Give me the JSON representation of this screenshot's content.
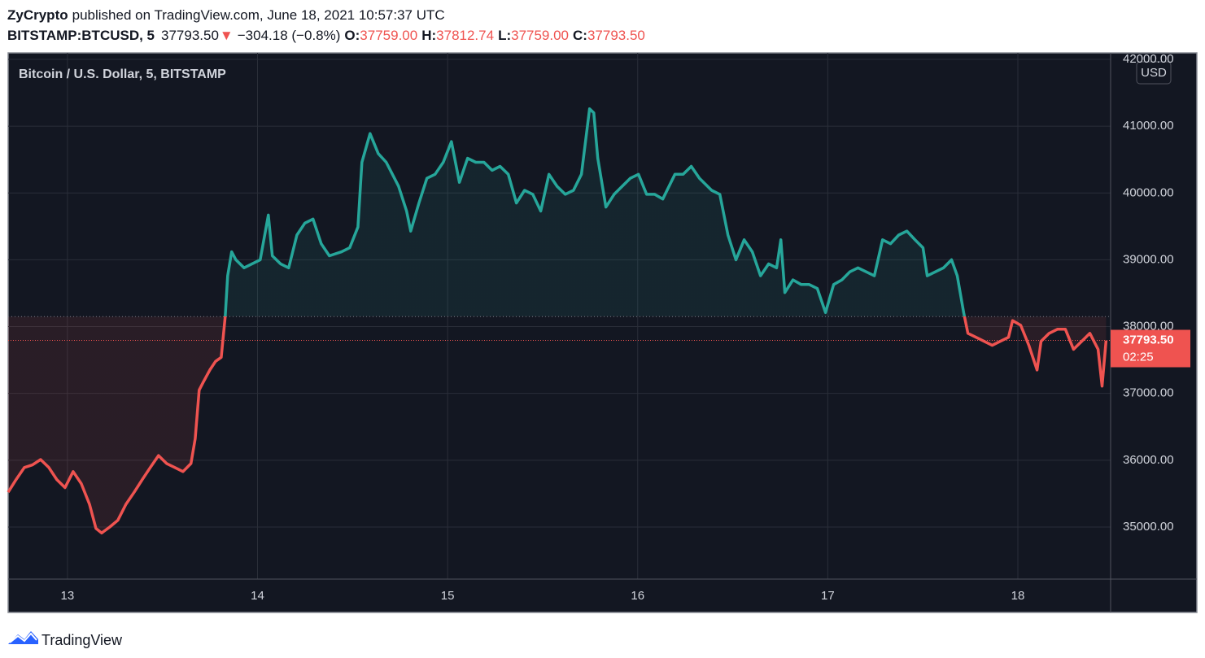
{
  "header": {
    "publisher": "ZyCrypto",
    "published": "published on TradingView.com, June 18, 2021 10:57:37 UTC",
    "symbol": "BITSTAMP:BTCUSD, 5",
    "last": "37793.50",
    "direction": "▼",
    "change": "−304.18 (−0.8%)",
    "ohlc": [
      {
        "label": "O:",
        "value": "37759.00"
      },
      {
        "label": "H:",
        "value": "37812.74"
      },
      {
        "label": "L:",
        "value": "37759.00"
      },
      {
        "label": "C:",
        "value": "37793.50"
      }
    ]
  },
  "chart_data": {
    "type": "line",
    "title": "Bitcoin / U.S. Dollar, 5, BITSTAMP",
    "currency": "USD",
    "up_color": "#26a69a",
    "down_color": "#ef5350",
    "baseline": 38150,
    "grid": true,
    "last_price": 37793.5,
    "last_price_label": "37793.50",
    "countdown": "02:25",
    "xlim": [
      12.688,
      18.488
    ],
    "xticks": [
      13,
      14,
      15,
      16,
      17,
      18
    ],
    "ylim": [
      34220,
      42098
    ],
    "yticks": [
      {
        "value": 35000,
        "label": "35000.00"
      },
      {
        "value": 36000,
        "label": "36000.00"
      },
      {
        "value": 37000,
        "label": "37000.00"
      },
      {
        "value": 38000,
        "label": "38000.00"
      },
      {
        "value": 39000,
        "label": "39000.00"
      },
      {
        "value": 40000,
        "label": "40000.00"
      },
      {
        "value": 41000,
        "label": "41000.00"
      },
      {
        "value": 42000,
        "label": "42000.00"
      }
    ],
    "x": [
      12.688,
      12.73,
      12.773,
      12.816,
      12.859,
      12.902,
      12.944,
      12.987,
      13.03,
      13.073,
      13.116,
      13.15,
      13.18,
      13.223,
      13.265,
      13.308,
      13.351,
      13.394,
      13.436,
      13.479,
      13.522,
      13.565,
      13.608,
      13.65,
      13.672,
      13.693,
      13.715,
      13.749,
      13.779,
      13.809,
      13.83,
      13.843,
      13.864,
      13.886,
      13.929,
      13.971,
      14.014,
      14.057,
      14.078,
      14.121,
      14.164,
      14.207,
      14.249,
      14.292,
      14.335,
      14.378,
      14.442,
      14.485,
      14.528,
      14.549,
      14.592,
      14.635,
      14.677,
      14.742,
      14.784,
      14.806,
      14.849,
      14.891,
      14.934,
      14.977,
      15.02,
      15.062,
      15.105,
      15.148,
      15.191,
      15.234,
      15.276,
      15.319,
      15.362,
      15.405,
      15.448,
      15.49,
      15.533,
      15.576,
      15.619,
      15.662,
      15.704,
      15.747,
      15.769,
      15.79,
      15.833,
      15.876,
      15.918,
      15.961,
      16.004,
      16.047,
      16.089,
      16.132,
      16.196,
      16.239,
      16.282,
      16.325,
      16.389,
      16.432,
      16.475,
      16.517,
      16.56,
      16.603,
      16.646,
      16.689,
      16.731,
      16.753,
      16.774,
      16.817,
      16.86,
      16.902,
      16.945,
      16.988,
      17.031,
      17.074,
      17.116,
      17.159,
      17.202,
      17.245,
      17.288,
      17.33,
      17.373,
      17.416,
      17.459,
      17.501,
      17.523,
      17.566,
      17.609,
      17.651,
      17.681,
      17.715,
      17.737,
      17.78,
      17.822,
      17.865,
      17.908,
      17.951,
      17.972,
      18.015,
      18.058,
      18.101,
      18.122,
      18.165,
      18.208,
      18.25,
      18.293,
      18.336,
      18.379,
      18.422,
      18.443,
      18.464
    ],
    "values": [
      35520,
      35710,
      35890,
      35930,
      36010,
      35890,
      35710,
      35590,
      35830,
      35650,
      35340,
      34980,
      34910,
      35000,
      35100,
      35340,
      35520,
      35710,
      35890,
      36070,
      35950,
      35890,
      35830,
      35950,
      36320,
      37050,
      37170,
      37350,
      37480,
      37540,
      38150,
      38760,
      39120,
      39000,
      38880,
      38940,
      39000,
      39670,
      39060,
      38940,
      38880,
      39370,
      39550,
      39610,
      39240,
      39060,
      39120,
      39180,
      39490,
      40460,
      40890,
      40590,
      40460,
      40100,
      39730,
      39430,
      39850,
      40220,
      40280,
      40460,
      40770,
      40160,
      40520,
      40460,
      40460,
      40340,
      40400,
      40280,
      39850,
      40040,
      39980,
      39730,
      40280,
      40100,
      39980,
      40040,
      40280,
      41260,
      41200,
      40520,
      39790,
      39980,
      40100,
      40220,
      40280,
      39980,
      39980,
      39910,
      40280,
      40280,
      40400,
      40220,
      40040,
      39980,
      39370,
      39000,
      39300,
      39120,
      38760,
      38940,
      38880,
      39300,
      38510,
      38700,
      38630,
      38630,
      38570,
      38210,
      38630,
      38700,
      38820,
      38880,
      38820,
      38760,
      39300,
      39240,
      39370,
      39430,
      39300,
      39180,
      38760,
      38820,
      38880,
      39000,
      38760,
      38210,
      37900,
      37840,
      37780,
      37720,
      37780,
      37840,
      38090,
      38020,
      37720,
      37350,
      37780,
      37900,
      37960,
      37960,
      37660,
      37780,
      37900,
      37660,
      37110,
      37790
    ]
  },
  "footer": {
    "brand": "TradingView"
  }
}
